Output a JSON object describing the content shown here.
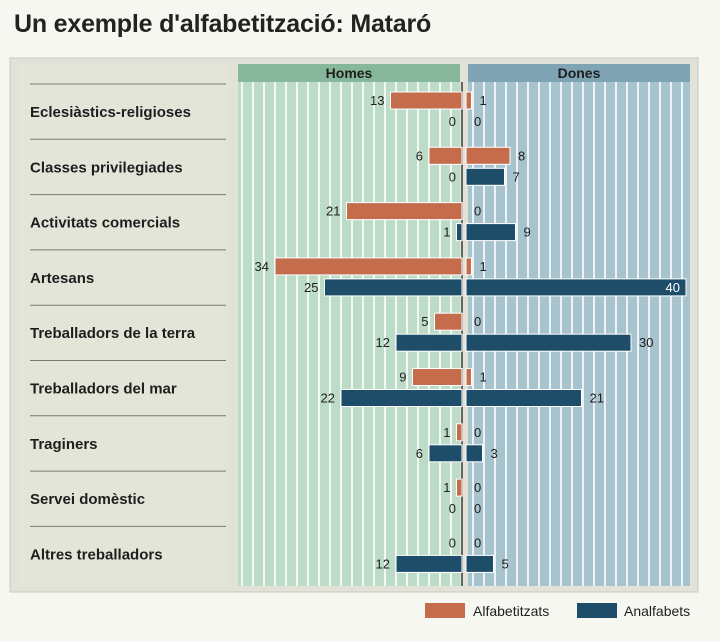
{
  "chart_data": {
    "type": "bar",
    "title": "Un exemple d'alfabetització: Mataró",
    "panels": [
      "Homes",
      "Dones"
    ],
    "categories": [
      "Eclesiàstics-religioses",
      "Classes privilegiades",
      "Activitats comercials",
      "Artesans",
      "Treballadors de la terra",
      "Treballadors del mar",
      "Traginers",
      "Servei domèstic",
      "Altres treballadors"
    ],
    "series": [
      {
        "name": "Alfabetitzats",
        "color": "#c46c4c",
        "homes": [
          13,
          6,
          21,
          34,
          5,
          9,
          1,
          1,
          0
        ],
        "dones": [
          1,
          8,
          0,
          1,
          0,
          1,
          0,
          0,
          0
        ]
      },
      {
        "name": "Analfabets",
        "color": "#1e4d6a",
        "homes": [
          0,
          0,
          1,
          25,
          12,
          22,
          6,
          0,
          12
        ],
        "dones": [
          0,
          7,
          9,
          40,
          30,
          21,
          3,
          0,
          5
        ]
      }
    ],
    "xlim": [
      0,
      40
    ],
    "grid": true,
    "legend": "bottom-right"
  }
}
